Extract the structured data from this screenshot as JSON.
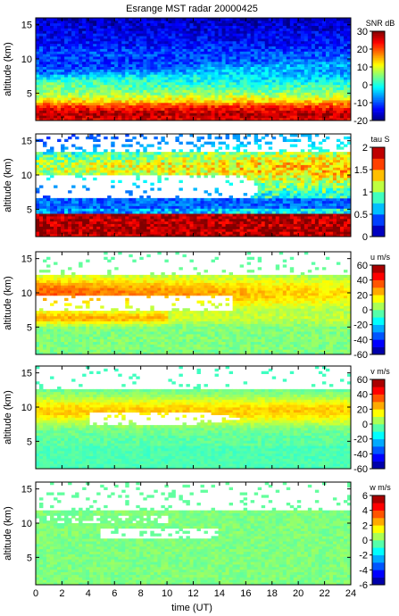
{
  "title": "Esrange MST radar 20000425",
  "xlabel": "time (UT)",
  "chart_data": [
    {
      "type": "heatmap",
      "quantity": "SNR",
      "colorbar_label": "SNR dB",
      "ylabel": "altitude (km)",
      "xlim": [
        0,
        24
      ],
      "ylim": [
        1,
        16
      ],
      "yticks": [
        5,
        10,
        15
      ],
      "clim": [
        -20,
        30
      ],
      "cticks": [
        -20,
        -10,
        0,
        10,
        20,
        30
      ],
      "colormap": "jet",
      "altitude_profile_at_t0": [
        {
          "alt": 1.0,
          "value": 24
        },
        {
          "alt": 2.0,
          "value": 28
        },
        {
          "alt": 3.0,
          "value": 22
        },
        {
          "alt": 4.0,
          "value": 12
        },
        {
          "alt": 5.0,
          "value": 6
        },
        {
          "alt": 6.0,
          "value": 2
        },
        {
          "alt": 7.0,
          "value": -2
        },
        {
          "alt": 8.0,
          "value": -6
        },
        {
          "alt": 9.0,
          "value": -8
        },
        {
          "alt": 10.0,
          "value": -10
        },
        {
          "alt": 11.0,
          "value": -10
        },
        {
          "alt": 12.0,
          "value": -13
        },
        {
          "alt": 13.0,
          "value": -14
        },
        {
          "alt": 14.0,
          "value": -15
        },
        {
          "alt": 15.0,
          "value": -16
        },
        {
          "alt": 16.0,
          "value": -17
        }
      ]
    },
    {
      "type": "heatmap",
      "quantity": "tau",
      "colorbar_label": "tau S",
      "ylabel": "altitude (km)",
      "xlim": [
        0,
        24
      ],
      "ylim": [
        1,
        16
      ],
      "yticks": [
        5,
        10,
        15
      ],
      "clim": [
        0,
        2
      ],
      "cticks": [
        0,
        0.5,
        1,
        1.5,
        2
      ],
      "colormap": "jet",
      "no_data_region": {
        "altitude_km": [
          6.5,
          10
        ],
        "time_ut": [
          0,
          17
        ]
      }
    },
    {
      "type": "heatmap",
      "quantity": "u",
      "colorbar_label": "u m/s",
      "ylabel": "altitude (km)",
      "xlim": [
        0,
        24
      ],
      "ylim": [
        1,
        16
      ],
      "yticks": [
        5,
        10,
        15
      ],
      "clim": [
        -60,
        60
      ],
      "cticks": [
        -60,
        -40,
        -20,
        0,
        20,
        40,
        60
      ],
      "colormap": "jet",
      "jet_max_altitude_km": 10,
      "jet_max_value": 35
    },
    {
      "type": "heatmap",
      "quantity": "v",
      "colorbar_label": "v m/s",
      "ylabel": "altitude (km)",
      "xlim": [
        0,
        24
      ],
      "ylim": [
        1,
        16
      ],
      "yticks": [
        5,
        10,
        15
      ],
      "clim": [
        -60,
        60
      ],
      "cticks": [
        -60,
        -40,
        -20,
        0,
        20,
        40,
        60
      ],
      "colormap": "jet",
      "jet_max_altitude_km": 9.5,
      "jet_max_value": 25
    },
    {
      "type": "heatmap",
      "quantity": "w",
      "colorbar_label": "w m/s",
      "ylabel": "altitude (km)",
      "xlim": [
        0,
        24
      ],
      "ylim": [
        1,
        16
      ],
      "yticks": [
        5,
        10,
        15
      ],
      "clim": [
        -6,
        6
      ],
      "cticks": [
        -6,
        -4,
        -2,
        0,
        2,
        4,
        6
      ],
      "colormap": "jet",
      "typical_value": 0
    }
  ],
  "xticks": [
    0,
    2,
    4,
    6,
    8,
    10,
    12,
    14,
    16,
    18,
    20,
    22,
    24
  ]
}
